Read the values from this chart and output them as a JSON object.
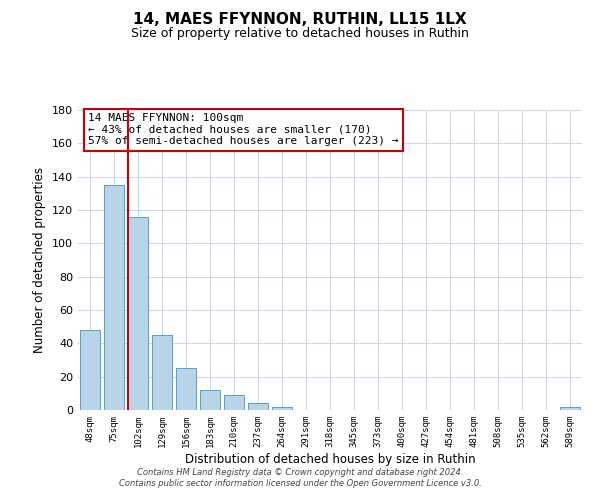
{
  "title": "14, MAES FFYNNON, RUTHIN, LL15 1LX",
  "subtitle": "Size of property relative to detached houses in Ruthin",
  "xlabel": "Distribution of detached houses by size in Ruthin",
  "ylabel": "Number of detached properties",
  "bar_labels": [
    "48sqm",
    "75sqm",
    "102sqm",
    "129sqm",
    "156sqm",
    "183sqm",
    "210sqm",
    "237sqm",
    "264sqm",
    "291sqm",
    "318sqm",
    "345sqm",
    "373sqm",
    "400sqm",
    "427sqm",
    "454sqm",
    "481sqm",
    "508sqm",
    "535sqm",
    "562sqm",
    "589sqm"
  ],
  "bar_values": [
    48,
    135,
    116,
    45,
    25,
    12,
    9,
    4,
    2,
    0,
    0,
    0,
    0,
    0,
    0,
    0,
    0,
    0,
    0,
    0,
    2
  ],
  "bar_color": "#b8d4e8",
  "bar_edge_color": "#5a9ec9",
  "highlight_bar_index": 2,
  "highlight_line_color": "#cc0000",
  "ylim": [
    0,
    180
  ],
  "yticks": [
    0,
    20,
    40,
    60,
    80,
    100,
    120,
    140,
    160,
    180
  ],
  "annotation_title": "14 MAES FFYNNON: 100sqm",
  "annotation_line1": "← 43% of detached houses are smaller (170)",
  "annotation_line2": "57% of semi-detached houses are larger (223) →",
  "annotation_box_color": "#ffffff",
  "annotation_box_edge": "#cc0000",
  "footer_line1": "Contains HM Land Registry data © Crown copyright and database right 2024.",
  "footer_line2": "Contains public sector information licensed under the Open Government Licence v3.0.",
  "background_color": "#ffffff",
  "grid_color": "#c8d8e8"
}
